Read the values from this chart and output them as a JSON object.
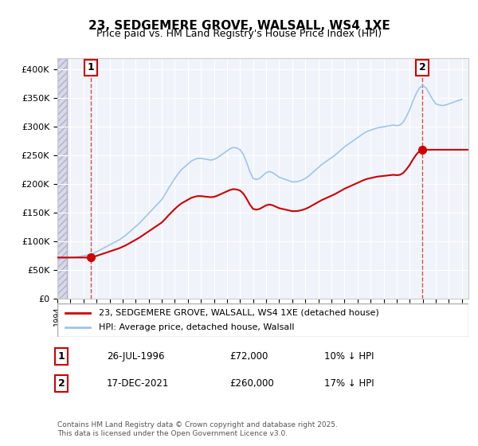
{
  "title": "23, SEDGEMERE GROVE, WALSALL, WS4 1XE",
  "subtitle": "Price paid vs. HM Land Registry's House Price Index (HPI)",
  "hpi_color": "#a0c4e8",
  "price_color": "#cc0000",
  "annotation_box_color": "#cc0000",
  "background_hatch_color": "#e8e8f0",
  "ylim": [
    0,
    420000
  ],
  "yticks": [
    0,
    50000,
    100000,
    150000,
    200000,
    250000,
    300000,
    350000,
    400000
  ],
  "xlim_start": 1994.0,
  "xlim_end": 2025.5,
  "sale1_x": 1996.57,
  "sale1_y": 72000,
  "sale1_label": "1",
  "sale2_x": 2021.96,
  "sale2_y": 260000,
  "sale2_label": "2",
  "legend_line1": "23, SEDGEMERE GROVE, WALSALL, WS4 1XE (detached house)",
  "legend_line2": "HPI: Average price, detached house, Walsall",
  "table_row1": [
    "1",
    "26-JUL-1996",
    "£72,000",
    "10% ↓ HPI"
  ],
  "table_row2": [
    "2",
    "17-DEC-2021",
    "£260,000",
    "17% ↓ HPI"
  ],
  "footnote": "Contains HM Land Registry data © Crown copyright and database right 2025.\nThis data is licensed under the Open Government Licence v3.0.",
  "hpi_data_x": [
    1994.0,
    1994.25,
    1994.5,
    1994.75,
    1995.0,
    1995.25,
    1995.5,
    1995.75,
    1996.0,
    1996.25,
    1996.5,
    1996.75,
    1997.0,
    1997.25,
    1997.5,
    1997.75,
    1998.0,
    1998.25,
    1998.5,
    1998.75,
    1999.0,
    1999.25,
    1999.5,
    1999.75,
    2000.0,
    2000.25,
    2000.5,
    2000.75,
    2001.0,
    2001.25,
    2001.5,
    2001.75,
    2002.0,
    2002.25,
    2002.5,
    2002.75,
    2003.0,
    2003.25,
    2003.5,
    2003.75,
    2004.0,
    2004.25,
    2004.5,
    2004.75,
    2005.0,
    2005.25,
    2005.5,
    2005.75,
    2006.0,
    2006.25,
    2006.5,
    2006.75,
    2007.0,
    2007.25,
    2007.5,
    2007.75,
    2008.0,
    2008.25,
    2008.5,
    2008.75,
    2009.0,
    2009.25,
    2009.5,
    2009.75,
    2010.0,
    2010.25,
    2010.5,
    2010.75,
    2011.0,
    2011.25,
    2011.5,
    2011.75,
    2012.0,
    2012.25,
    2012.5,
    2012.75,
    2013.0,
    2013.25,
    2013.5,
    2013.75,
    2014.0,
    2014.25,
    2014.5,
    2014.75,
    2015.0,
    2015.25,
    2015.5,
    2015.75,
    2016.0,
    2016.25,
    2016.5,
    2016.75,
    2017.0,
    2017.25,
    2017.5,
    2017.75,
    2018.0,
    2018.25,
    2018.5,
    2018.75,
    2019.0,
    2019.25,
    2019.5,
    2019.75,
    2020.0,
    2020.25,
    2020.5,
    2020.75,
    2021.0,
    2021.25,
    2021.5,
    2021.75,
    2022.0,
    2022.25,
    2022.5,
    2022.75,
    2023.0,
    2023.25,
    2023.5,
    2023.75,
    2024.0,
    2024.25,
    2024.5,
    2024.75,
    2025.0
  ],
  "hpi_data_y": [
    72000,
    71500,
    71000,
    71500,
    72000,
    72500,
    73000,
    74000,
    75000,
    76000,
    77000,
    79000,
    82000,
    85000,
    88000,
    91000,
    94000,
    97000,
    100000,
    103000,
    107000,
    111000,
    116000,
    121000,
    126000,
    131000,
    137000,
    143000,
    149000,
    155000,
    161000,
    167000,
    173000,
    182000,
    192000,
    201000,
    210000,
    218000,
    225000,
    230000,
    235000,
    240000,
    243000,
    245000,
    245000,
    244000,
    243000,
    242000,
    243000,
    246000,
    250000,
    254000,
    258000,
    262000,
    264000,
    263000,
    260000,
    252000,
    238000,
    222000,
    210000,
    208000,
    210000,
    215000,
    220000,
    222000,
    220000,
    216000,
    212000,
    210000,
    208000,
    206000,
    204000,
    204000,
    205000,
    207000,
    210000,
    214000,
    219000,
    224000,
    229000,
    234000,
    238000,
    242000,
    246000,
    250000,
    255000,
    260000,
    265000,
    269000,
    273000,
    277000,
    281000,
    285000,
    289000,
    292000,
    294000,
    296000,
    298000,
    299000,
    300000,
    301000,
    302000,
    303000,
    302000,
    303000,
    308000,
    318000,
    330000,
    345000,
    358000,
    368000,
    372000,
    368000,
    358000,
    348000,
    340000,
    338000,
    337000,
    338000,
    340000,
    342000,
    344000,
    346000,
    348000
  ],
  "price_data_x": [
    1994.0,
    1996.57,
    2021.96,
    2025.0
  ],
  "price_data_y": [
    72000,
    72000,
    260000,
    260000
  ]
}
